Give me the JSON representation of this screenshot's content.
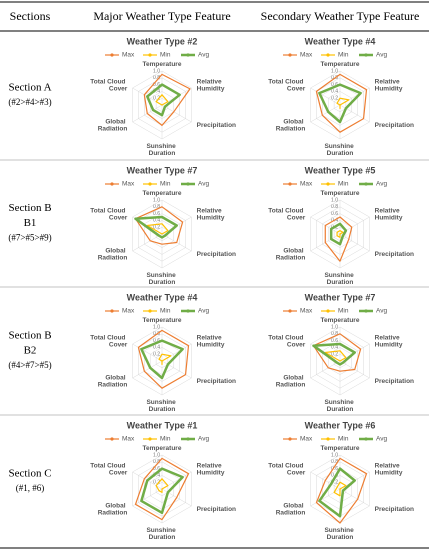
{
  "table": {
    "headers": [
      "Sections",
      "Major Weather Type Feature",
      "Secondary Weather Type Feature"
    ],
    "rows": [
      {
        "lines": [
          "Section A",
          "(#2>#4>#3)"
        ]
      },
      {
        "lines": [
          "Section B",
          "B1",
          "(#7>#5>#9)"
        ]
      },
      {
        "lines": [
          "Section B",
          "B2",
          "(#4>#7>#5)"
        ]
      },
      {
        "lines": [
          "Section C",
          "(#1, #6)"
        ]
      }
    ]
  },
  "chart_data": [
    {
      "type": "radar",
      "title": "Weather Type #2",
      "categories": [
        "Temperature",
        "Relative Humidity",
        "Precipitation",
        "Sunshine Duration",
        "Global Radiation",
        "Total Cloud Cover"
      ],
      "rlim": [
        0,
        1
      ],
      "rticks": [
        0.2,
        0.4,
        0.6,
        0.8,
        {
          "value": 1,
          "label": "1.0"
        }
      ],
      "series": [
        {
          "name": "Max",
          "color": "#ed7d31",
          "values": [
            0.9,
            0.95,
            0.4,
            0.6,
            0.5,
            0.6
          ]
        },
        {
          "name": "Min",
          "color": "#ffc000",
          "values": [
            0.3,
            0.2,
            0,
            0,
            0,
            0.2
          ]
        },
        {
          "name": "Avg",
          "color": "#70ad47",
          "values": [
            0.6,
            0.6,
            0.1,
            0.3,
            0.3,
            0.5
          ]
        }
      ]
    },
    {
      "type": "radar",
      "title": "Weather Type #4",
      "categories": [
        "Temperature",
        "Relative Humidity",
        "Precipitation",
        "Sunshine Duration",
        "Global Radiation",
        "Total Cloud Cover"
      ],
      "rlim": [
        0,
        1
      ],
      "rticks": [
        0.2,
        0.4,
        0.6,
        0.8,
        {
          "value": 1,
          "label": "1.0"
        }
      ],
      "series": [
        {
          "name": "Max",
          "color": "#ed7d31",
          "values": [
            0.9,
            0.9,
            0.8,
            0.8,
            0.6,
            0.8
          ]
        },
        {
          "name": "Min",
          "color": "#ffc000",
          "values": [
            0.2,
            0.3,
            0,
            0.1,
            0,
            0.1
          ]
        },
        {
          "name": "Avg",
          "color": "#70ad47",
          "values": [
            0.6,
            0.7,
            0.2,
            0.5,
            0.4,
            0.7
          ]
        }
      ]
    },
    {
      "type": "radar",
      "title": "Weather Type #7",
      "categories": [
        "Temperature",
        "Relative Humidity",
        "Precipitation",
        "Sunshine Duration",
        "Global Radiation",
        "Total Cloud Cover"
      ],
      "rlim": [
        0,
        1
      ],
      "rticks": [
        0.2,
        0.4,
        0.6,
        0.8,
        {
          "value": 1,
          "label": "1.0"
        }
      ],
      "series": [
        {
          "name": "Max",
          "color": "#ed7d31",
          "values": [
            0.8,
            0.7,
            0.5,
            0.3,
            0.4,
            0.9
          ]
        },
        {
          "name": "Min",
          "color": "#ffc000",
          "values": [
            0.3,
            0.2,
            0,
            0,
            0,
            0.5
          ]
        },
        {
          "name": "Avg",
          "color": "#70ad47",
          "values": [
            0.5,
            0.5,
            0.1,
            0.1,
            0.1,
            0.9
          ]
        }
      ]
    },
    {
      "type": "radar",
      "title": "Weather Type #5",
      "categories": [
        "Temperature",
        "Relative Humidity",
        "Precipitation",
        "Sunshine Duration",
        "Global Radiation",
        "Total Cloud Cover"
      ],
      "rlim": [
        0,
        1
      ],
      "rticks": [
        0.2,
        0.4,
        0.6,
        0.8,
        {
          "value": 1,
          "label": "1.0"
        }
      ],
      "series": [
        {
          "name": "Max",
          "color": "#ed7d31",
          "values": [
            0.5,
            0.4,
            0.3,
            0.8,
            0.5,
            0.5
          ]
        },
        {
          "name": "Min",
          "color": "#ffc000",
          "values": [
            0.1,
            0.1,
            0,
            0.1,
            0.1,
            0.1
          ]
        },
        {
          "name": "Avg",
          "color": "#70ad47",
          "values": [
            0.3,
            0.2,
            0.1,
            0.3,
            0.3,
            0.3
          ]
        }
      ]
    },
    {
      "type": "radar",
      "title": "Weather Type #4",
      "categories": [
        "Temperature",
        "Relative Humidity",
        "Precipitation",
        "Sunshine Duration",
        "Global Radiation",
        "Total Cloud Cover"
      ],
      "rlim": [
        0,
        1
      ],
      "rticks": [
        0.2,
        0.4,
        0.6,
        0.8,
        {
          "value": 1,
          "label": "1.0"
        }
      ],
      "series": [
        {
          "name": "Max",
          "color": "#ed7d31",
          "values": [
            0.9,
            0.9,
            0.8,
            0.8,
            0.6,
            0.8
          ]
        },
        {
          "name": "Min",
          "color": "#ffc000",
          "values": [
            0.2,
            0.3,
            0,
            0.1,
            0,
            0.1
          ]
        },
        {
          "name": "Avg",
          "color": "#70ad47",
          "values": [
            0.6,
            0.7,
            0.2,
            0.5,
            0.4,
            0.7
          ]
        }
      ]
    },
    {
      "type": "radar",
      "title": "Weather Type #7",
      "categories": [
        "Temperature",
        "Relative Humidity",
        "Precipitation",
        "Sunshine Duration",
        "Global Radiation",
        "Total Cloud Cover"
      ],
      "rlim": [
        0,
        1
      ],
      "rticks": [
        0.2,
        0.4,
        0.6,
        0.8,
        {
          "value": 1,
          "label": "1.0"
        }
      ],
      "series": [
        {
          "name": "Max",
          "color": "#ed7d31",
          "values": [
            0.8,
            0.7,
            0.5,
            0.3,
            0.4,
            0.9
          ]
        },
        {
          "name": "Min",
          "color": "#ffc000",
          "values": [
            0.3,
            0.2,
            0,
            0,
            0,
            0.5
          ]
        },
        {
          "name": "Avg",
          "color": "#70ad47",
          "values": [
            0.5,
            0.5,
            0.1,
            0.1,
            0.1,
            0.9
          ]
        }
      ]
    },
    {
      "type": "radar",
      "title": "Weather Type #1",
      "categories": [
        "Temperature",
        "Relative Humidity",
        "Precipitation",
        "Sunshine Duration",
        "Global Radiation",
        "Total Cloud Cover"
      ],
      "rlim": [
        0,
        1
      ],
      "rticks": [
        0.2,
        0.4,
        0.6,
        0.8,
        {
          "value": 1,
          "label": "1.0"
        }
      ],
      "series": [
        {
          "name": "Max",
          "color": "#ed7d31",
          "values": [
            0.9,
            0.9,
            0.5,
            0.9,
            0.9,
            0.6
          ]
        },
        {
          "name": "Min",
          "color": "#ffc000",
          "values": [
            0.3,
            0.2,
            0,
            0.1,
            0.1,
            0.2
          ]
        },
        {
          "name": "Avg",
          "color": "#70ad47",
          "values": [
            0.6,
            0.7,
            0.2,
            0.7,
            0.7,
            0.5
          ]
        }
      ]
    },
    {
      "type": "radar",
      "title": "Weather Type #6",
      "categories": [
        "Temperature",
        "Relative Humidity",
        "Precipitation",
        "Sunshine Duration",
        "Global Radiation",
        "Total Cloud Cover"
      ],
      "rlim": [
        0,
        1
      ],
      "rticks": [
        0.2,
        0.4,
        0.6,
        0.8,
        {
          "value": 1,
          "label": "1.0"
        }
      ],
      "series": [
        {
          "name": "Max",
          "color": "#ed7d31",
          "values": [
            0.9,
            0.9,
            0.6,
            1.0,
            0.8,
            0.5
          ]
        },
        {
          "name": "Min",
          "color": "#ffc000",
          "values": [
            0.2,
            0.2,
            0,
            0.2,
            0.2,
            0.1
          ]
        },
        {
          "name": "Avg",
          "color": "#70ad47",
          "values": [
            0.6,
            0.5,
            0.1,
            0.8,
            0.7,
            0.3
          ]
        }
      ]
    }
  ]
}
